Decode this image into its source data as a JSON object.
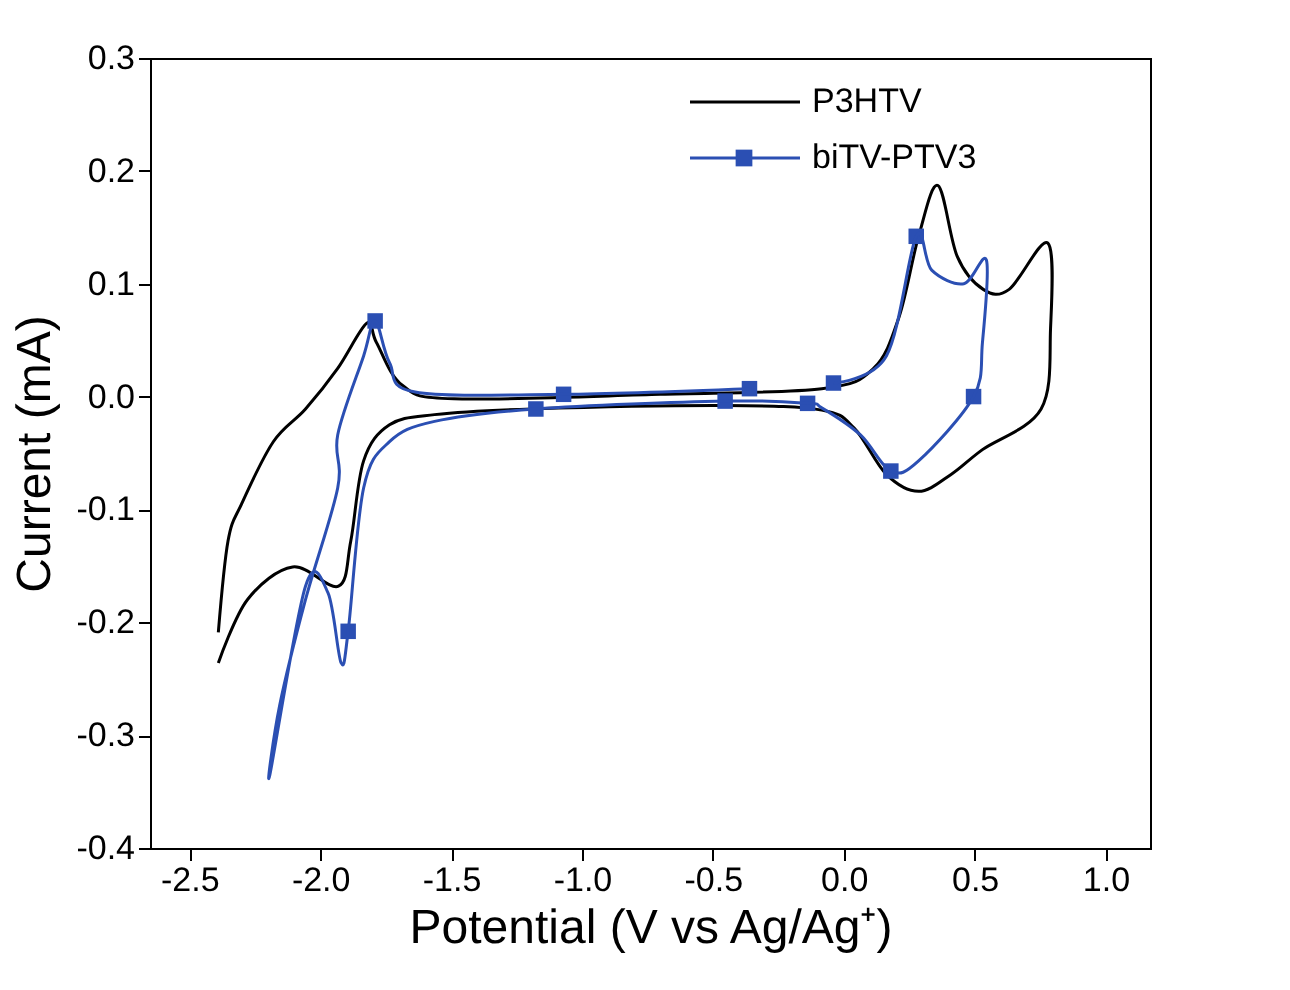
{
  "chart_data": {
    "type": "line",
    "xlabel": "Potential (V vs Ag/Ag⁺)",
    "ylabel": "Current (mA)",
    "xlim": [
      -2.65,
      1.17
    ],
    "xticks": [
      {
        "value": -2.5,
        "label": "-2.5"
      },
      {
        "value": -2.0,
        "label": "-2.0"
      },
      {
        "value": -1.5,
        "label": "-1.5"
      },
      {
        "value": -1.0,
        "label": "-1.0"
      },
      {
        "value": -0.5,
        "label": "-0.5"
      },
      {
        "value": 0.0,
        "label": "0.0"
      },
      {
        "value": 0.5,
        "label": "0.5"
      },
      {
        "value": 1.0,
        "label": "1.0"
      }
    ],
    "ylim": [
      -0.4,
      0.3
    ],
    "yticks": [
      {
        "value": -0.4,
        "label": "-0.4"
      },
      {
        "value": -0.3,
        "label": "-0.3"
      },
      {
        "value": -0.2,
        "label": "-0.2"
      },
      {
        "value": -0.1,
        "label": "-0.1"
      },
      {
        "value": 0.0,
        "label": "0.0"
      },
      {
        "value": 0.1,
        "label": "0.1"
      },
      {
        "value": 0.2,
        "label": "0.2"
      },
      {
        "value": 0.3,
        "label": "0.3"
      }
    ],
    "grid": false,
    "legend": "top",
    "line_style": "solid",
    "series": [
      {
        "name": "P3HTV",
        "color": "#000000",
        "type": "line",
        "marker": "none",
        "x": [
          -2.389,
          -2.352,
          -2.3,
          -2.179,
          -2.056,
          -1.933,
          -1.822,
          -1.785,
          -1.686,
          -1.489,
          -0.7,
          -0.084,
          0.114,
          0.212,
          0.286,
          0.36,
          0.434,
          0.533,
          0.632,
          0.78,
          0.79,
          0.754,
          0.53,
          0.41,
          0.286,
          0.163,
          0.04,
          -0.084,
          -0.453,
          -1.193,
          -1.563,
          -1.735,
          -1.834,
          -1.883,
          -1.93,
          -2.105,
          -2.278,
          -2.389
        ],
        "values": [
          -0.209,
          -0.128,
          -0.095,
          -0.04,
          -0.011,
          0.025,
          0.065,
          0.048,
          0.01,
          -0.002,
          0.002,
          0.007,
          0.025,
          0.071,
          0.142,
          0.187,
          0.124,
          0.095,
          0.095,
          0.136,
          0.06,
          -0.011,
          -0.047,
          -0.069,
          -0.084,
          -0.069,
          -0.028,
          -0.012,
          -0.008,
          -0.011,
          -0.016,
          -0.025,
          -0.057,
          -0.128,
          -0.168,
          -0.151,
          -0.18,
          -0.236
        ]
      },
      {
        "color": "#2b4fb3",
        "type": "scatter",
        "marker": "square",
        "x": [
          -1.79,
          -1.07,
          -1.176,
          -0.453,
          -0.36,
          -0.039,
          -0.138,
          0.277,
          0.496,
          0.18,
          -1.893
        ],
        "values": [
          0.067,
          0.002,
          -0.011,
          -0.004,
          0.007,
          0.012,
          -0.006,
          0.142,
          0.0,
          -0.066,
          -0.208
        ]
      },
      {
        "name": "biTV-PTV3",
        "color": "#2b4fb3",
        "type": "line",
        "marker": "none",
        "x": [
          -0.039,
          0.163,
          0.277,
          0.336,
          0.459,
          0.545,
          0.53,
          0.496,
          0.286,
          0.18,
          0.064,
          -0.084,
          -0.138,
          -0.453,
          -1.176,
          -1.563,
          -1.735,
          -1.834,
          -1.893,
          -1.92,
          -1.97,
          -2.056,
          -2.192,
          -2.155,
          -2.056,
          -1.933,
          -1.933,
          -1.834,
          -1.79,
          -1.735,
          -1.637,
          -1.07,
          -0.36
        ],
        "values": [
          0.012,
          0.036,
          0.142,
          0.112,
          0.1,
          0.121,
          0.048,
          0.0,
          -0.057,
          -0.066,
          -0.034,
          -0.01,
          -0.006,
          -0.004,
          -0.011,
          -0.022,
          -0.04,
          -0.081,
          -0.208,
          -0.236,
          -0.174,
          -0.168,
          -0.335,
          -0.274,
          -0.18,
          -0.081,
          -0.034,
          0.036,
          0.067,
          0.03,
          0.004,
          0.002,
          0.007
        ]
      }
    ]
  }
}
